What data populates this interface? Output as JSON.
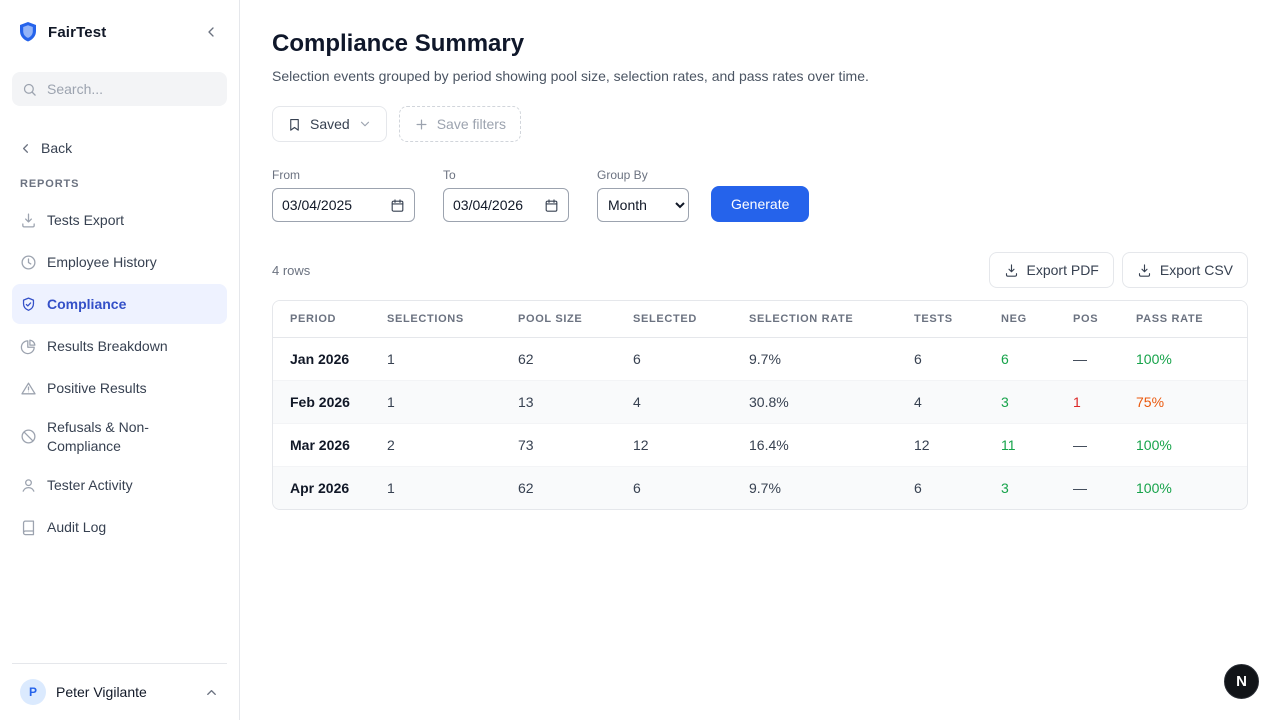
{
  "sidebar": {
    "brand": "FairTest",
    "search_placeholder": "Search...",
    "back_label": "Back",
    "section_label": "REPORTS",
    "items": [
      {
        "label": "Tests Export",
        "icon": "download",
        "active": false
      },
      {
        "label": "Employee History",
        "icon": "clock",
        "active": false
      },
      {
        "label": "Compliance",
        "icon": "shield-check",
        "active": true
      },
      {
        "label": "Results Breakdown",
        "icon": "pie-chart",
        "active": false
      },
      {
        "label": "Positive Results",
        "icon": "alert-triangle",
        "active": false
      },
      {
        "label": "Refusals & Non-Compliance",
        "icon": "ban",
        "active": false
      },
      {
        "label": "Tester Activity",
        "icon": "user",
        "active": false
      },
      {
        "label": "Audit Log",
        "icon": "book",
        "active": false
      }
    ],
    "user": {
      "initial": "P",
      "name": "Peter Vigilante"
    }
  },
  "header": {
    "title": "Compliance Summary",
    "subtitle": "Selection events grouped by period showing pool size, selection rates, and pass rates over time."
  },
  "filters": {
    "saved_label": "Saved",
    "save_filters_label": "Save filters",
    "from_label": "From",
    "from_value": "03/04/2025",
    "to_label": "To",
    "to_value": "03/04/2026",
    "group_by_label": "Group By",
    "group_by_value": "Month",
    "generate_label": "Generate"
  },
  "results": {
    "row_count": "4 rows",
    "export_pdf_label": "Export PDF",
    "export_csv_label": "Export CSV"
  },
  "table": {
    "headers": [
      "Period",
      "Selections",
      "Pool Size",
      "Selected",
      "Selection Rate",
      "Tests",
      "Neg",
      "Pos",
      "Pass Rate"
    ],
    "rows": [
      {
        "period": "Jan 2026",
        "selections": "1",
        "pool_size": "62",
        "selected": "6",
        "selection_rate": "9.7%",
        "tests": "6",
        "neg": "6",
        "pos": "—",
        "pass_rate": "100%",
        "neg_color": "green",
        "pos_color": "",
        "pass_color": "green"
      },
      {
        "period": "Feb 2026",
        "selections": "1",
        "pool_size": "13",
        "selected": "4",
        "selection_rate": "30.8%",
        "tests": "4",
        "neg": "3",
        "pos": "1",
        "pass_rate": "75%",
        "neg_color": "green",
        "pos_color": "red",
        "pass_color": "orange"
      },
      {
        "period": "Mar 2026",
        "selections": "2",
        "pool_size": "73",
        "selected": "12",
        "selection_rate": "16.4%",
        "tests": "12",
        "neg": "11",
        "pos": "—",
        "pass_rate": "100%",
        "neg_color": "green",
        "pos_color": "",
        "pass_color": "green"
      },
      {
        "period": "Apr 2026",
        "selections": "1",
        "pool_size": "62",
        "selected": "6",
        "selection_rate": "9.7%",
        "tests": "6",
        "neg": "3",
        "pos": "—",
        "pass_rate": "100%",
        "neg_color": "green",
        "pos_color": "",
        "pass_color": "green"
      }
    ]
  },
  "floating_badge": {
    "label": "N"
  },
  "colors": {
    "accent": "#2563eb",
    "active_item_bg": "#eef2ff",
    "active_item_text": "#3450c8",
    "positive": "#16a34a",
    "negative": "#dc2626",
    "warning": "#ea580c"
  }
}
